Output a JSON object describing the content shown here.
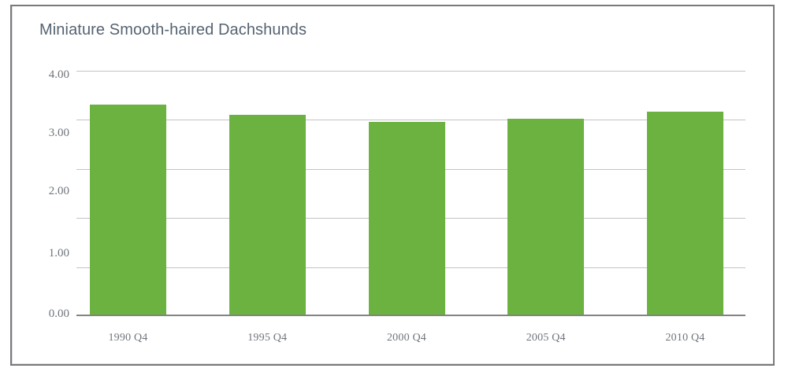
{
  "colors": {
    "bar": "#6bb240",
    "gridline": "#c3c3c3",
    "baseline": "#838383",
    "title_text": "#566372",
    "axis_text": "#6f747b",
    "frame_border": "#77797b",
    "background": "#ffffff"
  },
  "chart_data": {
    "type": "bar",
    "title": "Miniature Smooth-haired Dachshunds",
    "categories": [
      "1990 Q4",
      "1995 Q4",
      "2000 Q4",
      "2005 Q4",
      "2010 Q4"
    ],
    "values": [
      3.45,
      3.28,
      3.17,
      3.22,
      3.33
    ],
    "xlabel": "",
    "ylabel": "",
    "ylim": [
      0,
      4
    ],
    "yticks": {
      "labels": [
        "4.00",
        "3.00",
        "2.00",
        "1.00",
        "0.00"
      ],
      "values": [
        4,
        3,
        2,
        1,
        0
      ]
    },
    "gridline_values": [
      0,
      0.8,
      1.6,
      2.4,
      3.2,
      4
    ],
    "grid": true,
    "legend": false,
    "bar_count": 5
  }
}
